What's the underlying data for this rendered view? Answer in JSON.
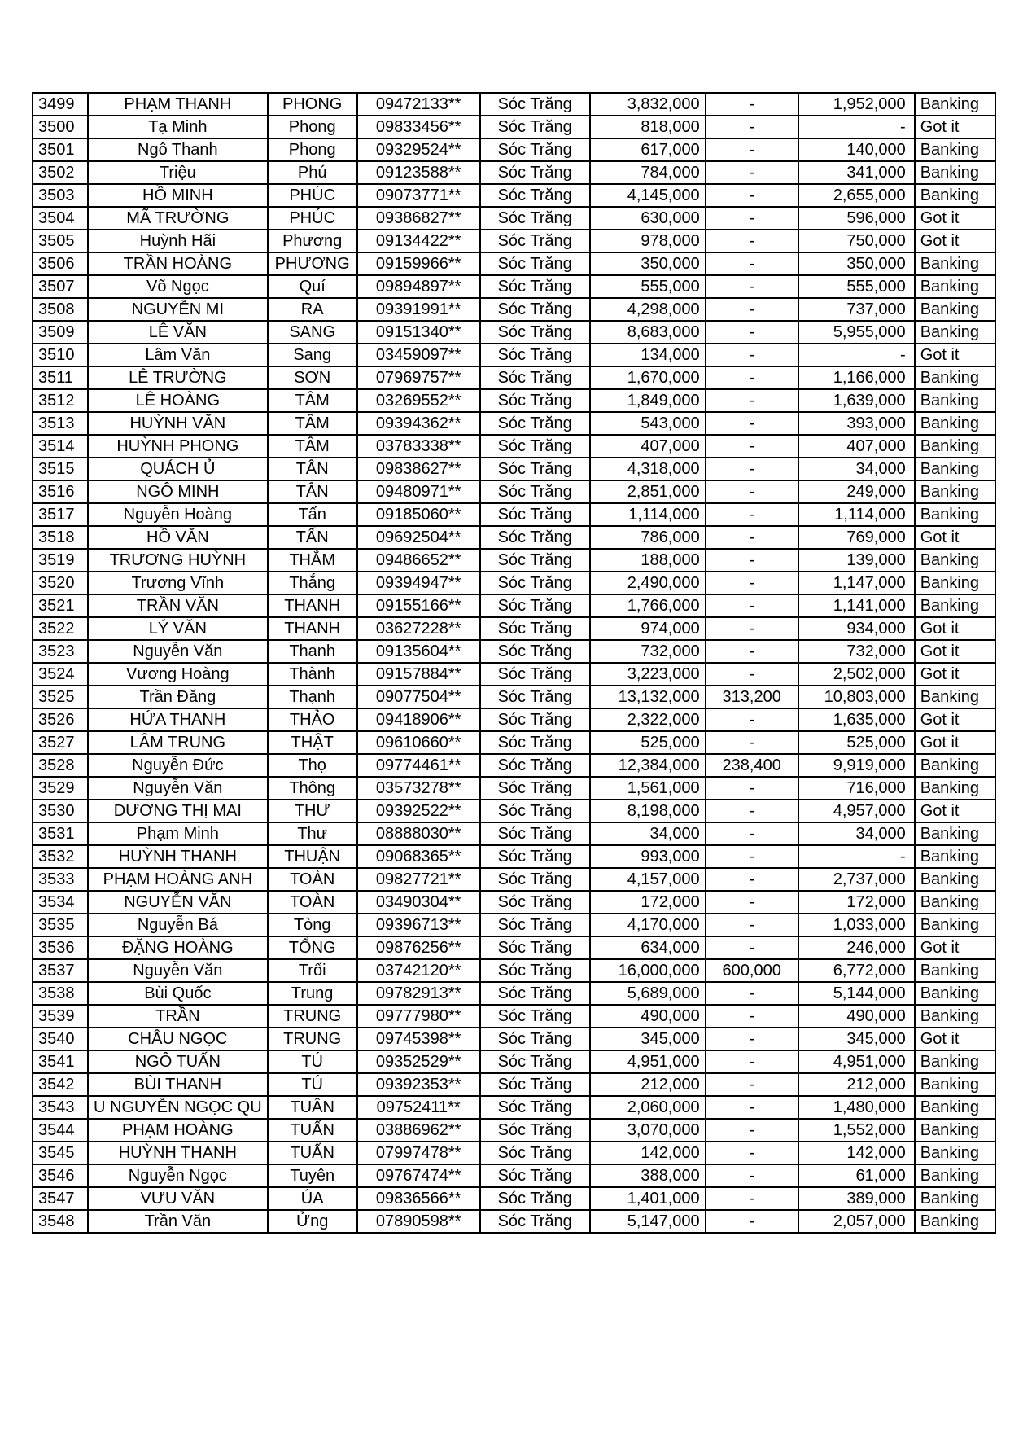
{
  "table": {
    "rows": [
      [
        "3499",
        "PHẠM THANH",
        "PHONG",
        "09472133**",
        "Sóc Trăng",
        "3,832,000",
        "-",
        "1,952,000",
        "Banking"
      ],
      [
        "3500",
        "Tạ Minh",
        "Phong",
        "09833456**",
        "Sóc Trăng",
        "818,000",
        "-",
        "-",
        "Got it"
      ],
      [
        "3501",
        "Ngô Thanh",
        "Phong",
        "09329524**",
        "Sóc Trăng",
        "617,000",
        "-",
        "140,000",
        "Banking"
      ],
      [
        "3502",
        "Triệu",
        "Phú",
        "09123588**",
        "Sóc Trăng",
        "784,000",
        "-",
        "341,000",
        "Banking"
      ],
      [
        "3503",
        "HỒ MINH",
        "PHÚC",
        "09073771**",
        "Sóc Trăng",
        "4,145,000",
        "-",
        "2,655,000",
        "Banking"
      ],
      [
        "3504",
        "MÃ TRƯỜNG",
        "PHÚC",
        "09386827**",
        "Sóc Trăng",
        "630,000",
        "-",
        "596,000",
        "Got it"
      ],
      [
        "3505",
        "Huỳnh Hãi",
        "Phương",
        "09134422**",
        "Sóc Trăng",
        "978,000",
        "-",
        "750,000",
        "Got it"
      ],
      [
        "3506",
        "TRẦN HOÀNG",
        "PHƯƠNG",
        "09159966**",
        "Sóc Trăng",
        "350,000",
        "-",
        "350,000",
        "Banking"
      ],
      [
        "3507",
        "Võ Ngọc",
        "Quí",
        "09894897**",
        "Sóc Trăng",
        "555,000",
        "-",
        "555,000",
        "Banking"
      ],
      [
        "3508",
        "NGUYỄN MI",
        "RA",
        "09391991**",
        "Sóc Trăng",
        "4,298,000",
        "-",
        "737,000",
        "Banking"
      ],
      [
        "3509",
        "LÊ VĂN",
        "SANG",
        "09151340**",
        "Sóc Trăng",
        "8,683,000",
        "-",
        "5,955,000",
        "Banking"
      ],
      [
        "3510",
        "Lâm Văn",
        "Sang",
        "03459097**",
        "Sóc Trăng",
        "134,000",
        "-",
        "-",
        "Got it"
      ],
      [
        "3511",
        "LÊ TRƯỜNG",
        "SƠN",
        "07969757**",
        "Sóc Trăng",
        "1,670,000",
        "-",
        "1,166,000",
        "Banking"
      ],
      [
        "3512",
        "LÊ HOÀNG",
        "TÂM",
        "03269552**",
        "Sóc Trăng",
        "1,849,000",
        "-",
        "1,639,000",
        "Banking"
      ],
      [
        "3513",
        "HUỲNH VĂN",
        "TÂM",
        "09394362**",
        "Sóc Trăng",
        "543,000",
        "-",
        "393,000",
        "Banking"
      ],
      [
        "3514",
        "HUỲNH PHONG",
        "TÂM",
        "03783338**",
        "Sóc Trăng",
        "407,000",
        "-",
        "407,000",
        "Banking"
      ],
      [
        "3515",
        "QUÁCH Ủ",
        "TÂN",
        "09838627**",
        "Sóc Trăng",
        "4,318,000",
        "-",
        "34,000",
        "Banking"
      ],
      [
        "3516",
        "NGÔ MINH",
        "TÂN",
        "09480971**",
        "Sóc Trăng",
        "2,851,000",
        "-",
        "249,000",
        "Banking"
      ],
      [
        "3517",
        "Nguyễn Hoàng",
        "Tấn",
        "09185060**",
        "Sóc Trăng",
        "1,114,000",
        "-",
        "1,114,000",
        "Banking"
      ],
      [
        "3518",
        "HỒ VĂN",
        "TẤN",
        "09692504**",
        "Sóc Trăng",
        "786,000",
        "-",
        "769,000",
        "Got it"
      ],
      [
        "3519",
        "TRƯƠNG HUỲNH",
        "THẮM",
        "09486652**",
        "Sóc Trăng",
        "188,000",
        "-",
        "139,000",
        "Banking"
      ],
      [
        "3520",
        "Trương Vĩnh",
        "Thắng",
        "09394947**",
        "Sóc Trăng",
        "2,490,000",
        "-",
        "1,147,000",
        "Banking"
      ],
      [
        "3521",
        "TRẦN VĂN",
        "THANH",
        "09155166**",
        "Sóc Trăng",
        "1,766,000",
        "-",
        "1,141,000",
        "Banking"
      ],
      [
        "3522",
        "LÝ VĂN",
        "THANH",
        "03627228**",
        "Sóc Trăng",
        "974,000",
        "-",
        "934,000",
        "Got it"
      ],
      [
        "3523",
        "Nguyễn Văn",
        "Thanh",
        "09135604**",
        "Sóc Trăng",
        "732,000",
        "-",
        "732,000",
        "Got it"
      ],
      [
        "3524",
        "Vương Hoàng",
        "Thành",
        "09157884**",
        "Sóc Trăng",
        "3,223,000",
        "-",
        "2,502,000",
        "Got it"
      ],
      [
        "3525",
        "Trần Đăng",
        "Thạnh",
        "09077504**",
        "Sóc Trăng",
        "13,132,000",
        "313,200",
        "10,803,000",
        "Banking"
      ],
      [
        "3526",
        "HỨA THANH",
        "THẢO",
        "09418906**",
        "Sóc Trăng",
        "2,322,000",
        "-",
        "1,635,000",
        "Got it"
      ],
      [
        "3527",
        "LÂM TRUNG",
        "THẬT",
        "09610660**",
        "Sóc Trăng",
        "525,000",
        "-",
        "525,000",
        "Got it"
      ],
      [
        "3528",
        "Nguyễn Đức",
        "Thọ",
        "09774461**",
        "Sóc Trăng",
        "12,384,000",
        "238,400",
        "9,919,000",
        "Banking"
      ],
      [
        "3529",
        "Nguyễn Văn",
        "Thông",
        "03573278**",
        "Sóc Trăng",
        "1,561,000",
        "-",
        "716,000",
        "Banking"
      ],
      [
        "3530",
        "DƯƠNG THỊ MAI",
        "THƯ",
        "09392522**",
        "Sóc Trăng",
        "8,198,000",
        "-",
        "4,957,000",
        "Got it"
      ],
      [
        "3531",
        "Phạm Minh",
        "Thư",
        "08888030**",
        "Sóc Trăng",
        "34,000",
        "-",
        "34,000",
        "Banking"
      ],
      [
        "3532",
        "HUỲNH THANH",
        "THUẬN",
        "09068365**",
        "Sóc Trăng",
        "993,000",
        "-",
        "-",
        "Banking"
      ],
      [
        "3533",
        "PHẠM HOÀNG ANH",
        "TOÀN",
        "09827721**",
        "Sóc Trăng",
        "4,157,000",
        "-",
        "2,737,000",
        "Banking"
      ],
      [
        "3534",
        "NGUYỄN VĂN",
        "TOÀN",
        "03490304**",
        "Sóc Trăng",
        "172,000",
        "-",
        "172,000",
        "Banking"
      ],
      [
        "3535",
        "Nguyễn Bá",
        "Tòng",
        "09396713**",
        "Sóc Trăng",
        "4,170,000",
        "-",
        "1,033,000",
        "Banking"
      ],
      [
        "3536",
        "ĐẶNG HOÀNG",
        "TỔNG",
        "09876256**",
        "Sóc Trăng",
        "634,000",
        "-",
        "246,000",
        "Got it"
      ],
      [
        "3537",
        "Nguyễn Văn",
        "Trổi",
        "03742120**",
        "Sóc Trăng",
        "16,000,000",
        "600,000",
        "6,772,000",
        "Banking"
      ],
      [
        "3538",
        "Bùi Quốc",
        "Trung",
        "09782913**",
        "Sóc Trăng",
        "5,689,000",
        "-",
        "5,144,000",
        "Banking"
      ],
      [
        "3539",
        "TRẦN",
        "TRUNG",
        "09777980**",
        "Sóc Trăng",
        "490,000",
        "-",
        "490,000",
        "Banking"
      ],
      [
        "3540",
        "CHÂU NGỌC",
        "TRUNG",
        "09745398**",
        "Sóc Trăng",
        "345,000",
        "-",
        "345,000",
        "Got it"
      ],
      [
        "3541",
        "NGÔ TUẤN",
        "TÚ",
        "09352529**",
        "Sóc Trăng",
        "4,951,000",
        "-",
        "4,951,000",
        "Banking"
      ],
      [
        "3542",
        "BÙI THANH",
        "TÚ",
        "09392353**",
        "Sóc Trăng",
        "212,000",
        "-",
        "212,000",
        "Banking"
      ],
      [
        "3543",
        "U NGUYỄN NGỌC QU",
        "TUÂN",
        "09752411**",
        "Sóc Trăng",
        "2,060,000",
        "-",
        "1,480,000",
        "Banking"
      ],
      [
        "3544",
        "PHẠM HOÀNG",
        "TUẤN",
        "03886962**",
        "Sóc Trăng",
        "3,070,000",
        "-",
        "1,552,000",
        "Banking"
      ],
      [
        "3545",
        "HUỲNH THANH",
        "TUẤN",
        "07997478**",
        "Sóc Trăng",
        "142,000",
        "-",
        "142,000",
        "Banking"
      ],
      [
        "3546",
        "Nguyễn Ngọc",
        "Tuyên",
        "09767474**",
        "Sóc Trăng",
        "388,000",
        "-",
        "61,000",
        "Banking"
      ],
      [
        "3547",
        "VƯU VĂN",
        "ÚA",
        "09836566**",
        "Sóc Trăng",
        "1,401,000",
        "-",
        "389,000",
        "Banking"
      ],
      [
        "3548",
        "Trần Văn",
        "Ửng",
        "07890598**",
        "Sóc Trăng",
        "5,147,000",
        "-",
        "2,057,000",
        "Banking"
      ]
    ]
  }
}
